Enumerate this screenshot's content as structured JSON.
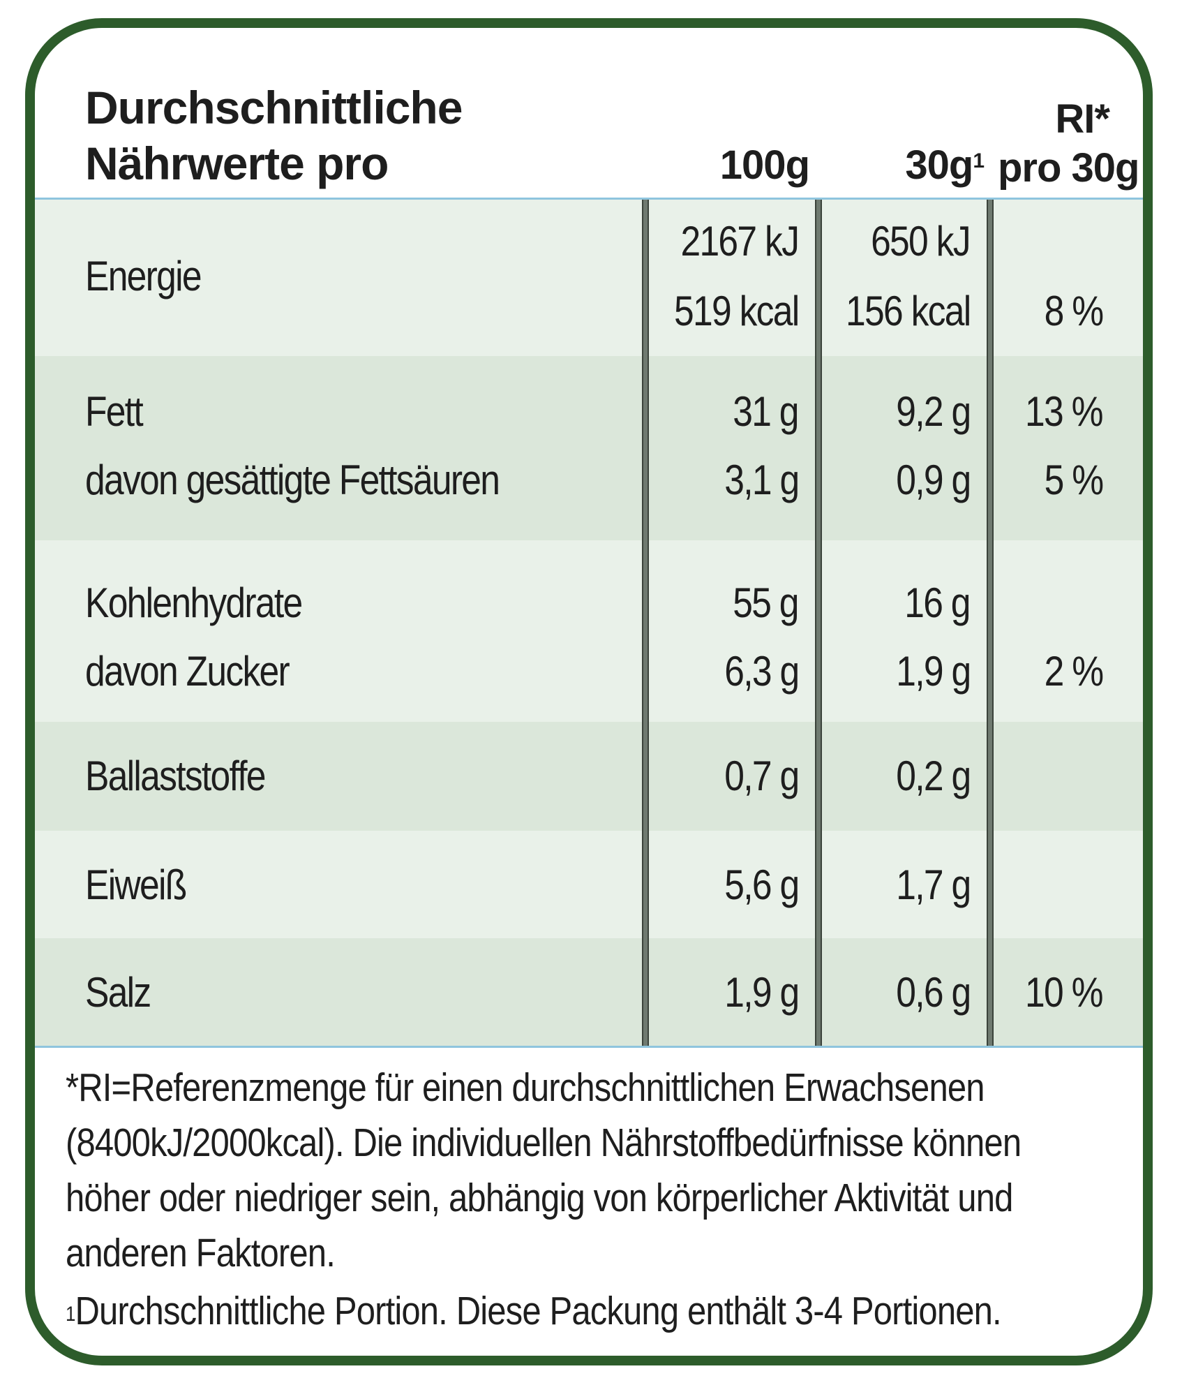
{
  "header": {
    "title_line1": "Durchschnittliche",
    "title_line2": "Nährwerte pro",
    "col_100g": "100g",
    "col_30g": "30g",
    "col_30g_sup": "1",
    "col_ri_line1": "RI*",
    "col_ri_line2": "pro 30g"
  },
  "rows": {
    "energie": {
      "label": "Energie",
      "v100_kj": "2167 kJ",
      "v100_kcal": "519 kcal",
      "v30_kj": "650 kJ",
      "v30_kcal": "156 kcal",
      "ri": "8 %"
    },
    "fett": {
      "label": "Fett",
      "v100": "31 g",
      "v30": "9,2 g",
      "ri": "13 %"
    },
    "fettsaeuren": {
      "label": "davon gesättigte Fettsäuren",
      "v100": "3,1 g",
      "v30": "0,9 g",
      "ri": "5 %"
    },
    "kohlenhydrate": {
      "label": "Kohlenhydrate",
      "v100": "55 g",
      "v30": "16 g",
      "ri": ""
    },
    "zucker": {
      "label": "davon Zucker",
      "v100": "6,3 g",
      "v30": "1,9 g",
      "ri": "2 %"
    },
    "ballaststoffe": {
      "label": "Ballaststoffe",
      "v100": "0,7 g",
      "v30": "0,2 g",
      "ri": ""
    },
    "eiweiss": {
      "label": "Eiweiß",
      "v100": "5,6 g",
      "v30": "1,7 g",
      "ri": ""
    },
    "salz": {
      "label": "Salz",
      "v100": "1,9 g",
      "v30": "0,6 g",
      "ri": "10 %"
    }
  },
  "footer": {
    "ri_note": "*RI=Referenzmenge für einen durchschnittlichen Erwachsenen (8400kJ/2000kcal). Die individuellen Nährstoffbedürfnisse können höher oder niedriger sein, abhängig von körperlicher Aktivität und anderen Faktoren.",
    "portion_sup": "1",
    "portion_note": "Durchschnittliche Portion. Diese Packung enthält 3-4 Portionen."
  },
  "colors": {
    "border": "#2d5c2b",
    "row_light": "#e9f1e9",
    "row_dark": "#dbe7da",
    "rule_blue": "#8fc5de"
  }
}
